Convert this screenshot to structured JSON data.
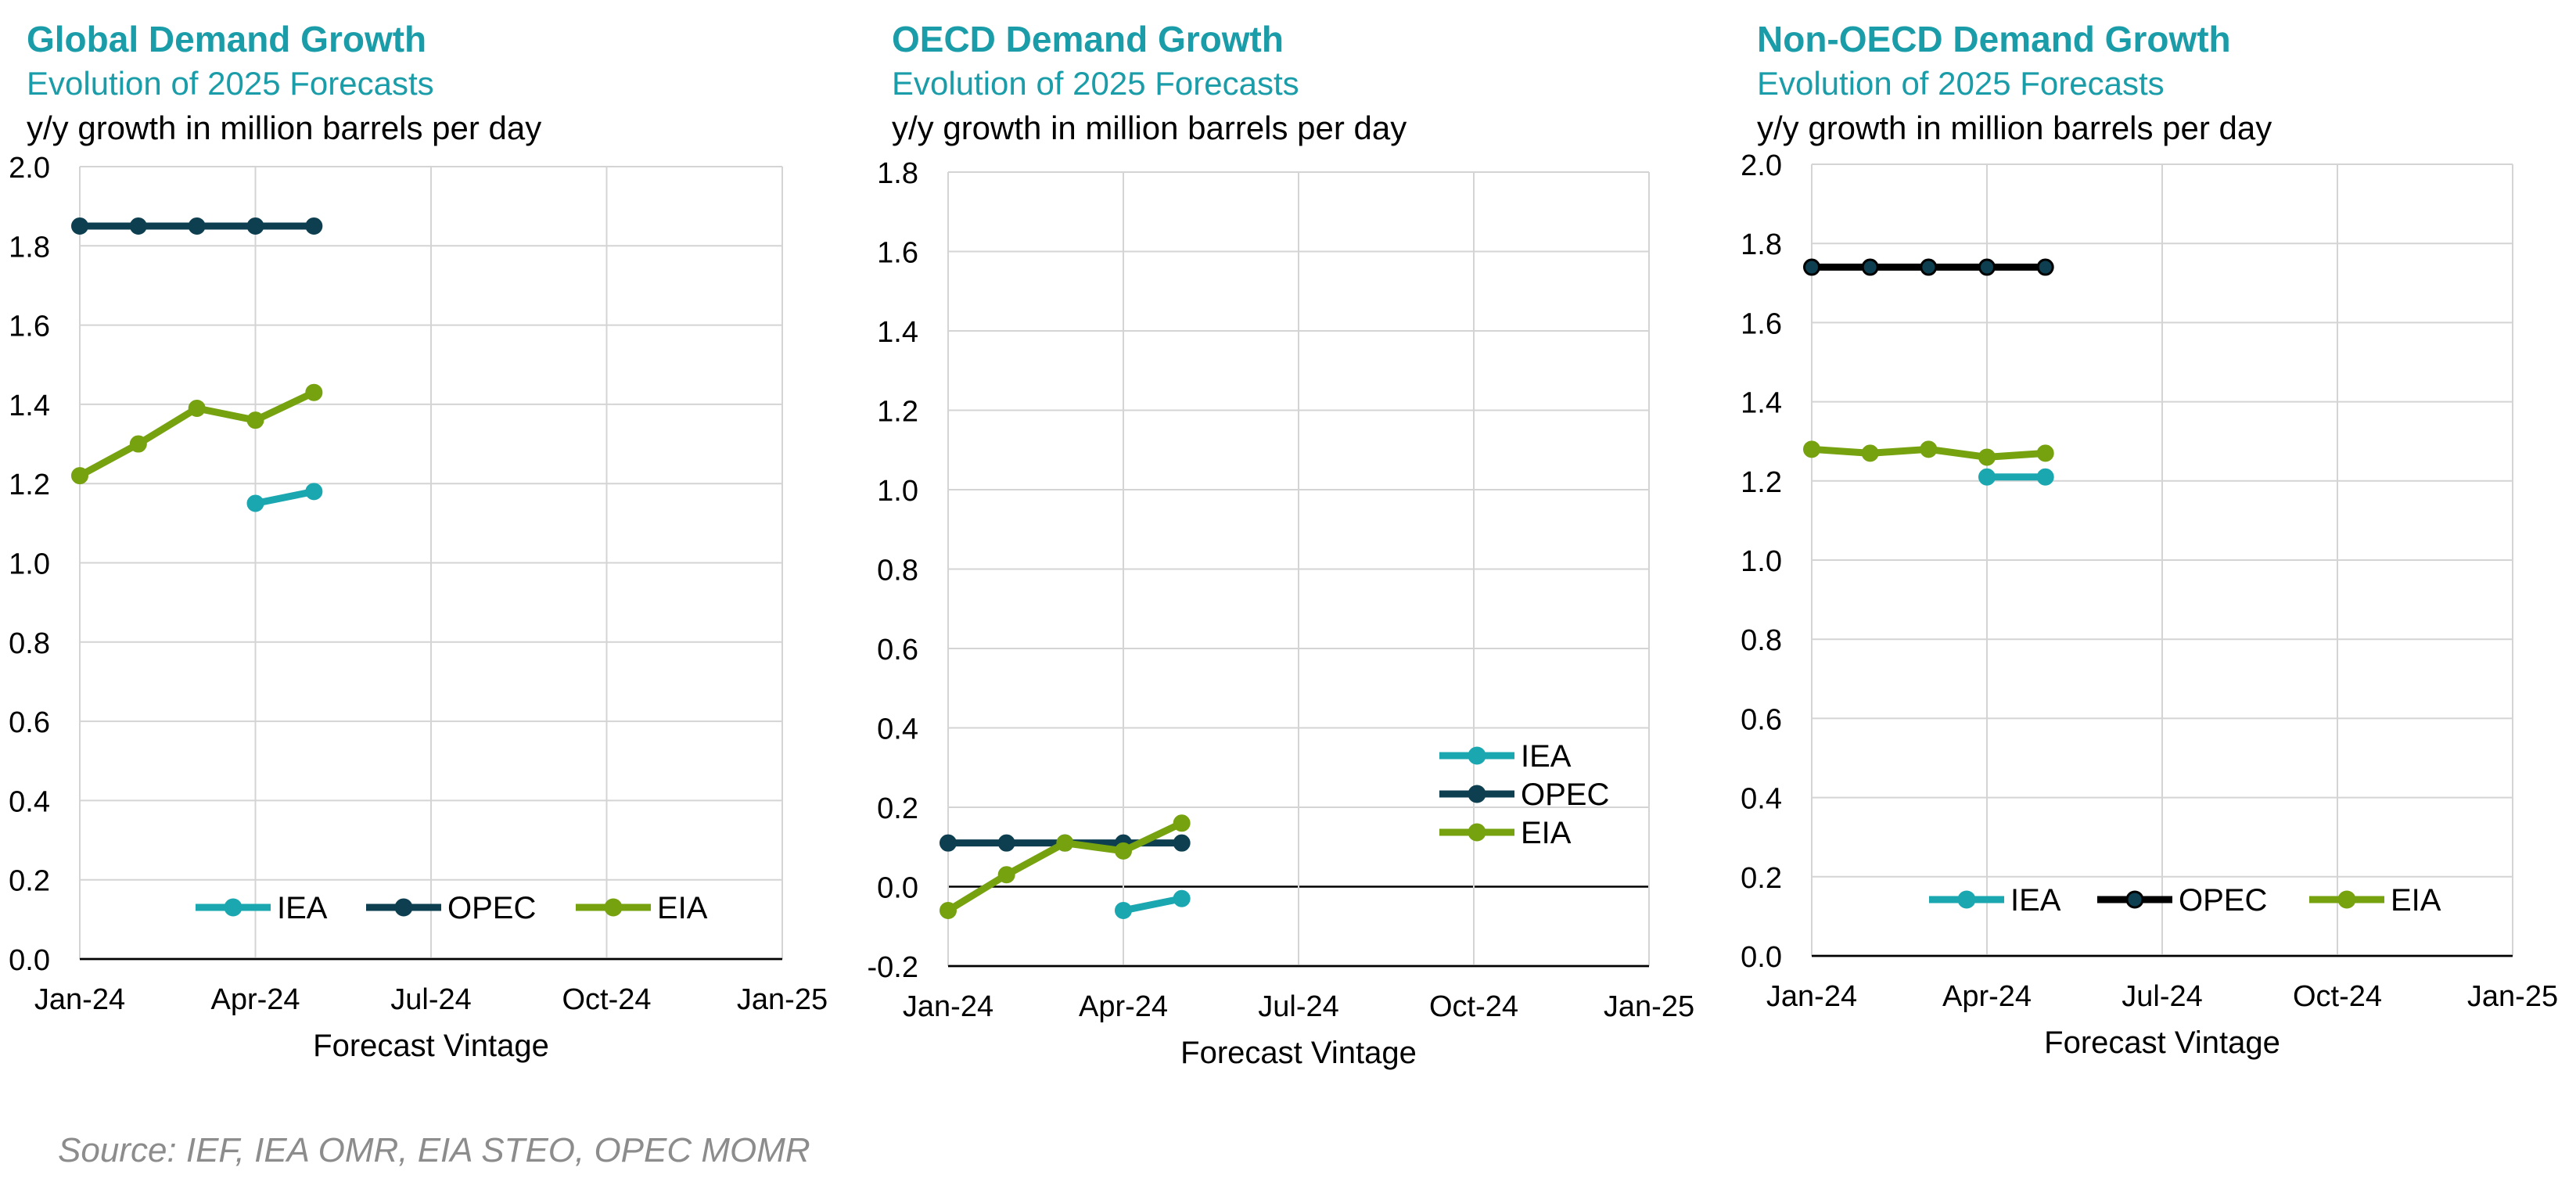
{
  "source": "Source: IEF, IEA OMR, EIA STEO, OPEC MOMR",
  "colors": {
    "title": "#1a9da8",
    "iea": "#1aa7b0",
    "opec_dark": "#0d3f50",
    "opec_black": "#000000",
    "eia": "#76a20f",
    "grid": "#d4d4d4",
    "axis": "#000000"
  },
  "chart_data": [
    {
      "type": "line",
      "title": "Global Demand Growth",
      "subtitle": "Evolution of 2025 Forecasts",
      "ylabel": "y/y growth in million barrels per day",
      "xlabel": "Forecast Vintage",
      "x_ticks": [
        "Jan-24",
        "Apr-24",
        "Jul-24",
        "Oct-24",
        "Jan-25"
      ],
      "ylim": [
        0.0,
        2.0
      ],
      "y_ticks": [
        "0.0",
        "0.2",
        "0.4",
        "0.6",
        "0.8",
        "1.0",
        "1.2",
        "1.4",
        "1.6",
        "1.8",
        "2.0"
      ],
      "legend_position": "bottom",
      "series": [
        {
          "name": "IEA",
          "color_key": "iea",
          "x_months": [
            3,
            4
          ],
          "values": [
            1.15,
            1.18
          ]
        },
        {
          "name": "OPEC",
          "color_key": "opec_dark",
          "x_months": [
            0,
            1,
            2,
            3,
            4
          ],
          "values": [
            1.85,
            1.85,
            1.85,
            1.85,
            1.85
          ]
        },
        {
          "name": "EIA",
          "color_key": "eia",
          "x_months": [
            0,
            1,
            2,
            3,
            4
          ],
          "values": [
            1.22,
            1.3,
            1.39,
            1.36,
            1.43
          ]
        }
      ]
    },
    {
      "type": "line",
      "title": "OECD Demand Growth",
      "subtitle": "Evolution of 2025 Forecasts",
      "ylabel": "y/y growth in million barrels per day",
      "xlabel": "Forecast Vintage",
      "x_ticks": [
        "Jan-24",
        "Apr-24",
        "Jul-24",
        "Oct-24",
        "Jan-25"
      ],
      "ylim": [
        -0.2,
        1.8
      ],
      "y_ticks": [
        "-0.2",
        "0.0",
        "0.2",
        "0.4",
        "0.6",
        "0.8",
        "1.0",
        "1.2",
        "1.4",
        "1.6",
        "1.8"
      ],
      "legend_position": "right",
      "series": [
        {
          "name": "IEA",
          "color_key": "iea",
          "x_months": [
            3,
            4
          ],
          "values": [
            -0.06,
            -0.03
          ]
        },
        {
          "name": "OPEC",
          "color_key": "opec_dark",
          "x_months": [
            0,
            1,
            2,
            3,
            4
          ],
          "values": [
            0.11,
            0.11,
            0.11,
            0.11,
            0.11
          ]
        },
        {
          "name": "EIA",
          "color_key": "eia",
          "x_months": [
            0,
            1,
            2,
            3,
            4
          ],
          "values": [
            -0.06,
            0.03,
            0.11,
            0.09,
            0.16
          ]
        }
      ]
    },
    {
      "type": "line",
      "title": "Non-OECD Demand Growth",
      "subtitle": "Evolution of 2025 Forecasts",
      "ylabel": "y/y growth in million barrels per day",
      "xlabel": "Forecast Vintage",
      "x_ticks": [
        "Jan-24",
        "Apr-24",
        "Jul-24",
        "Oct-24",
        "Jan-25"
      ],
      "ylim": [
        0.0,
        2.0
      ],
      "y_ticks": [
        "0.0",
        "0.2",
        "0.4",
        "0.6",
        "0.8",
        "1.0",
        "1.2",
        "1.4",
        "1.6",
        "1.8",
        "2.0"
      ],
      "legend_position": "bottom",
      "series": [
        {
          "name": "IEA",
          "color_key": "iea",
          "x_months": [
            3,
            4
          ],
          "values": [
            1.21,
            1.21
          ]
        },
        {
          "name": "OPEC",
          "color_key": "opec_black",
          "x_months": [
            0,
            1,
            2,
            3,
            4
          ],
          "values": [
            1.74,
            1.74,
            1.74,
            1.74,
            1.74
          ]
        },
        {
          "name": "EIA",
          "color_key": "eia",
          "x_months": [
            0,
            1,
            2,
            3,
            4
          ],
          "values": [
            1.28,
            1.27,
            1.28,
            1.26,
            1.27
          ]
        }
      ]
    }
  ]
}
